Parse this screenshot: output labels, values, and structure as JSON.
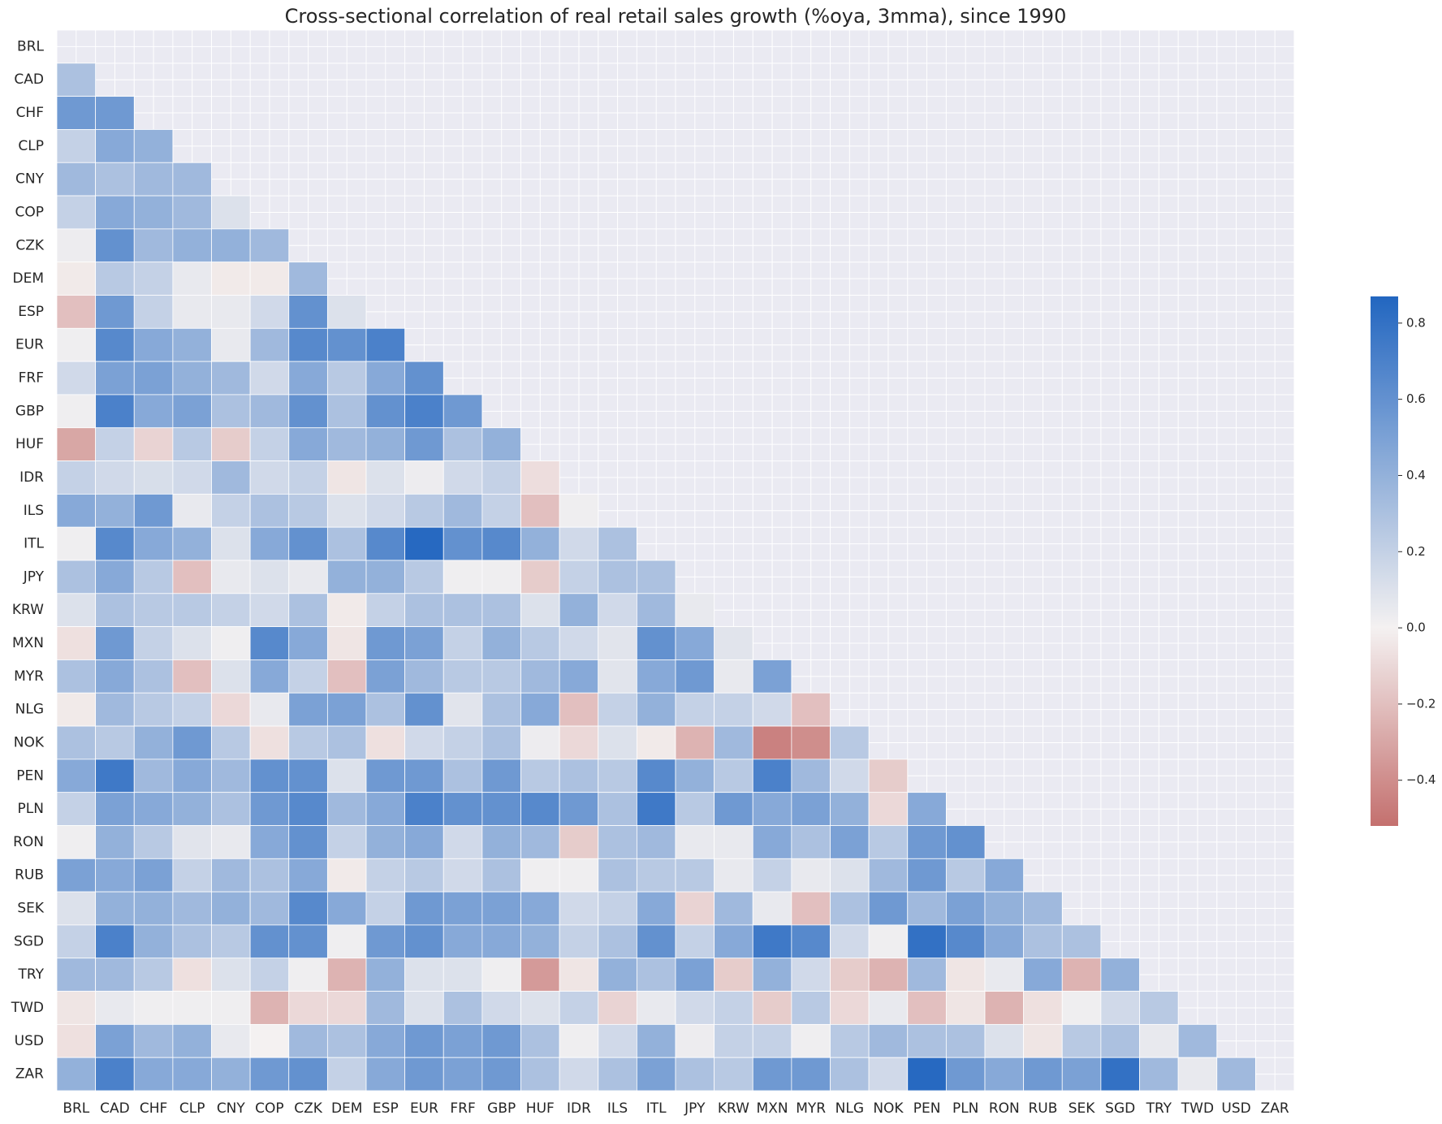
{
  "chart_data": {
    "type": "heatmap",
    "title": "Cross-sectional correlation of real retail sales growth (%oya, 3mma), since 1990",
    "categories": [
      "BRL",
      "CAD",
      "CHF",
      "CLP",
      "CNY",
      "COP",
      "CZK",
      "DEM",
      "ESP",
      "EUR",
      "FRF",
      "GBP",
      "HUF",
      "IDR",
      "ILS",
      "ITL",
      "JPY",
      "KRW",
      "MXN",
      "MYR",
      "NLG",
      "NOK",
      "PEN",
      "PLN",
      "RON",
      "RUB",
      "SEK",
      "SGD",
      "TRY",
      "TWD",
      "USD",
      "ZAR"
    ],
    "values": [
      [],
      [
        0.3
      ],
      [
        0.55,
        0.55
      ],
      [
        0.2,
        0.45,
        0.4
      ],
      [
        0.35,
        0.3,
        0.35,
        0.35
      ],
      [
        0.2,
        0.45,
        0.4,
        0.35,
        0.1
      ],
      [
        0.03,
        0.6,
        0.35,
        0.4,
        0.4,
        0.35
      ],
      [
        -0.03,
        0.25,
        0.2,
        0.05,
        -0.03,
        -0.03,
        0.35
      ],
      [
        -0.2,
        0.55,
        0.2,
        0.05,
        0.05,
        0.15,
        0.6,
        0.1
      ],
      [
        0.02,
        0.65,
        0.45,
        0.4,
        0.05,
        0.35,
        0.65,
        0.6,
        0.7
      ],
      [
        0.15,
        0.5,
        0.5,
        0.4,
        0.35,
        0.15,
        0.45,
        0.25,
        0.45,
        0.6
      ],
      [
        0.02,
        0.7,
        0.45,
        0.5,
        0.3,
        0.35,
        0.6,
        0.3,
        0.6,
        0.7,
        0.55
      ],
      [
        -0.3,
        0.2,
        -0.12,
        0.25,
        -0.15,
        0.2,
        0.45,
        0.35,
        0.4,
        0.55,
        0.3,
        0.4
      ],
      [
        0.2,
        0.15,
        0.12,
        0.15,
        0.35,
        0.15,
        0.2,
        -0.05,
        0.1,
        0.03,
        0.15,
        0.2,
        -0.08
      ],
      [
        0.45,
        0.4,
        0.55,
        0.05,
        0.2,
        0.3,
        0.25,
        0.1,
        0.15,
        0.25,
        0.35,
        0.2,
        -0.2,
        0.02
      ],
      [
        0.02,
        0.65,
        0.45,
        0.4,
        0.1,
        0.45,
        0.6,
        0.3,
        0.65,
        0.85,
        0.6,
        0.65,
        0.4,
        0.15,
        0.3
      ],
      [
        0.3,
        0.45,
        0.25,
        -0.2,
        0.05,
        0.1,
        0.05,
        0.4,
        0.4,
        0.25,
        0.02,
        0.02,
        -0.15,
        0.2,
        0.3,
        0.3
      ],
      [
        0.1,
        0.3,
        0.25,
        0.25,
        0.2,
        0.15,
        0.3,
        -0.03,
        0.2,
        0.3,
        0.3,
        0.3,
        0.1,
        0.4,
        0.15,
        0.35,
        0.05
      ],
      [
        -0.07,
        0.55,
        0.2,
        0.1,
        0.02,
        0.65,
        0.45,
        -0.05,
        0.55,
        0.5,
        0.2,
        0.4,
        0.25,
        0.15,
        0.08,
        0.6,
        0.45,
        0.08
      ],
      [
        0.3,
        0.45,
        0.3,
        -0.2,
        0.1,
        0.45,
        0.2,
        -0.2,
        0.5,
        0.35,
        0.25,
        0.25,
        0.35,
        0.45,
        0.08,
        0.45,
        0.55,
        0.05,
        0.5
      ],
      [
        -0.03,
        0.35,
        0.25,
        0.2,
        -0.1,
        0.05,
        0.5,
        0.5,
        0.3,
        0.6,
        0.08,
        0.3,
        0.45,
        -0.2,
        0.2,
        0.4,
        0.2,
        0.2,
        0.15,
        -0.2
      ],
      [
        0.3,
        0.25,
        0.4,
        0.55,
        0.25,
        -0.07,
        0.25,
        0.3,
        -0.07,
        0.15,
        0.2,
        0.3,
        0.03,
        -0.1,
        0.1,
        -0.03,
        -0.25,
        0.35,
        -0.45,
        -0.4,
        0.25
      ],
      [
        0.45,
        0.75,
        0.35,
        0.45,
        0.35,
        0.6,
        0.6,
        0.1,
        0.55,
        0.55,
        0.3,
        0.55,
        0.25,
        0.3,
        0.25,
        0.65,
        0.4,
        0.25,
        0.7,
        0.35,
        0.15,
        -0.15
      ],
      [
        0.2,
        0.5,
        0.45,
        0.4,
        0.3,
        0.55,
        0.65,
        0.35,
        0.45,
        0.7,
        0.6,
        0.6,
        0.65,
        0.55,
        0.3,
        0.75,
        0.25,
        0.55,
        0.45,
        0.5,
        0.4,
        -0.1,
        0.45
      ],
      [
        0.02,
        0.4,
        0.25,
        0.08,
        0.05,
        0.45,
        0.6,
        0.2,
        0.4,
        0.45,
        0.15,
        0.4,
        0.35,
        -0.15,
        0.3,
        0.35,
        0.05,
        0.05,
        0.45,
        0.3,
        0.5,
        0.25,
        0.55,
        0.6
      ],
      [
        0.5,
        0.45,
        0.5,
        0.2,
        0.35,
        0.3,
        0.45,
        -0.03,
        0.2,
        0.25,
        0.15,
        0.3,
        0.02,
        0.02,
        0.3,
        0.25,
        0.25,
        0.05,
        0.2,
        0.05,
        0.1,
        0.35,
        0.55,
        0.25,
        0.45
      ],
      [
        0.1,
        0.4,
        0.4,
        0.35,
        0.4,
        0.35,
        0.65,
        0.45,
        0.2,
        0.55,
        0.5,
        0.5,
        0.45,
        0.15,
        0.2,
        0.45,
        -0.12,
        0.35,
        0.05,
        -0.2,
        0.3,
        0.55,
        0.35,
        0.5,
        0.4,
        0.35
      ],
      [
        0.2,
        0.7,
        0.4,
        0.3,
        0.25,
        0.6,
        0.6,
        0.02,
        0.55,
        0.6,
        0.45,
        0.45,
        0.4,
        0.2,
        0.3,
        0.6,
        0.2,
        0.45,
        0.75,
        0.65,
        0.15,
        0.02,
        0.8,
        0.65,
        0.45,
        0.3,
        0.3
      ],
      [
        0.35,
        0.35,
        0.25,
        -0.07,
        0.1,
        0.2,
        0.02,
        -0.25,
        0.4,
        0.1,
        0.1,
        0.02,
        -0.35,
        -0.05,
        0.4,
        0.3,
        0.5,
        -0.15,
        0.4,
        0.15,
        -0.15,
        -0.25,
        0.35,
        -0.05,
        0.05,
        0.45,
        -0.25,
        0.4
      ],
      [
        -0.05,
        0.05,
        0.02,
        0.02,
        0.02,
        -0.25,
        -0.1,
        -0.1,
        0.35,
        0.1,
        0.3,
        0.15,
        0.1,
        0.2,
        -0.12,
        0.05,
        0.15,
        0.2,
        -0.15,
        0.25,
        -0.1,
        0.05,
        -0.2,
        -0.05,
        -0.25,
        -0.07,
        0.02,
        0.15,
        0.25
      ],
      [
        -0.07,
        0.5,
        0.35,
        0.4,
        0.05,
        0.0,
        0.35,
        0.3,
        0.45,
        0.55,
        0.5,
        0.55,
        0.3,
        0.02,
        0.15,
        0.4,
        0.03,
        0.2,
        0.2,
        0.02,
        0.25,
        0.35,
        0.3,
        0.3,
        0.1,
        -0.05,
        0.25,
        0.3,
        0.05,
        0.35
      ],
      [
        0.4,
        0.7,
        0.45,
        0.45,
        0.4,
        0.55,
        0.6,
        0.2,
        0.45,
        0.55,
        0.5,
        0.55,
        0.3,
        0.15,
        0.3,
        0.5,
        0.3,
        0.25,
        0.55,
        0.55,
        0.3,
        0.15,
        0.85,
        0.55,
        0.45,
        0.55,
        0.5,
        0.8,
        0.35,
        0.05,
        0.35
      ]
    ],
    "clim": [
      -0.52,
      0.87
    ],
    "cbar_ticks": [
      {
        "value": -0.4,
        "label": "−0.4"
      },
      {
        "value": -0.2,
        "label": "−0.2"
      },
      {
        "value": 0.0,
        "label": "0.0"
      },
      0.2,
      0.4,
      0.6,
      0.8
    ],
    "colors": {
      "negative": "#c4706e",
      "center": "#f4f1f1",
      "positive": "#2266c0"
    },
    "grid": true
  }
}
